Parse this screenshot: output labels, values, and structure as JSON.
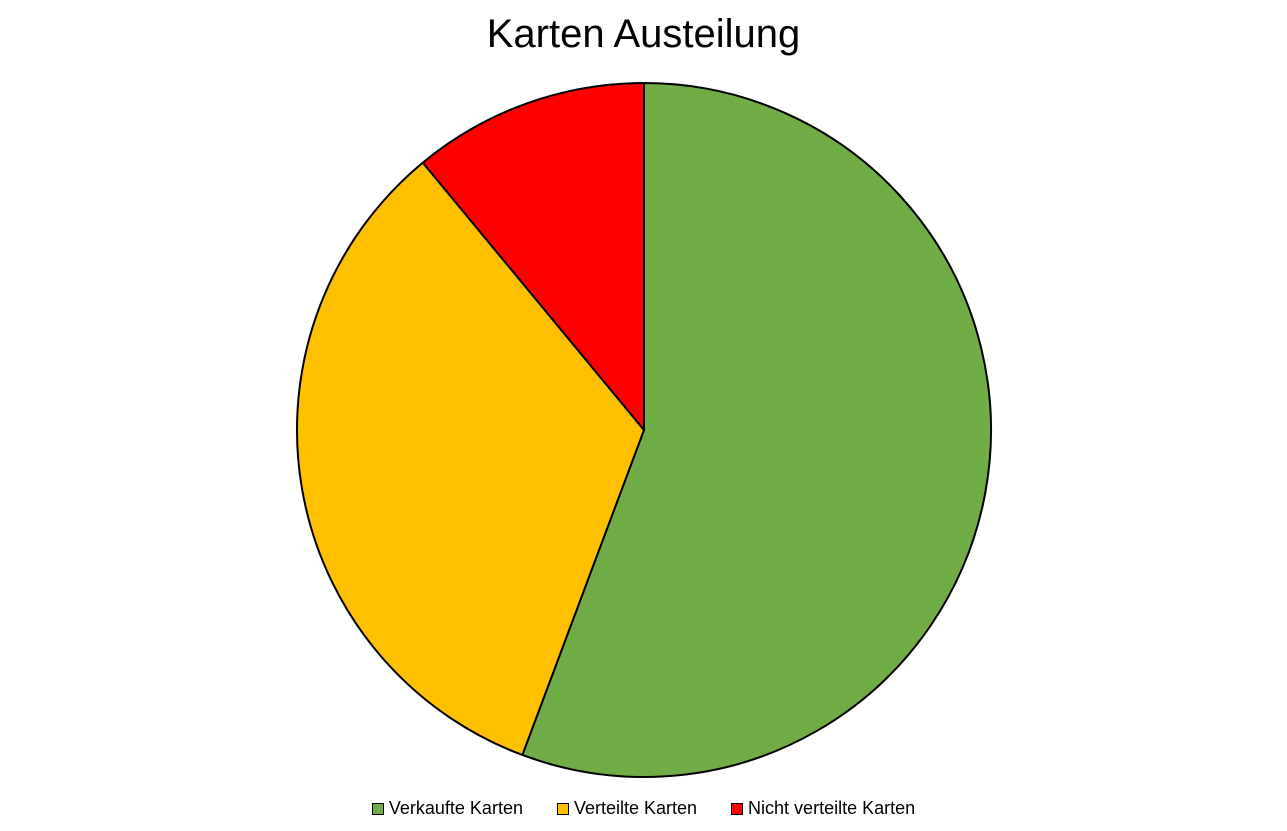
{
  "chart_data": {
    "type": "pie",
    "title": "Karten Austeilung",
    "categories": [
      "Verkaufte Karten",
      "Verteilte Karten",
      "Nicht verteilte Karten"
    ],
    "values": [
      55.7,
      33.3,
      11.0
    ],
    "colors": [
      "#70AD47",
      "#FFC000",
      "#FF0000"
    ],
    "legend_position": "bottom",
    "start_angle": "top",
    "direction": "clockwise"
  }
}
